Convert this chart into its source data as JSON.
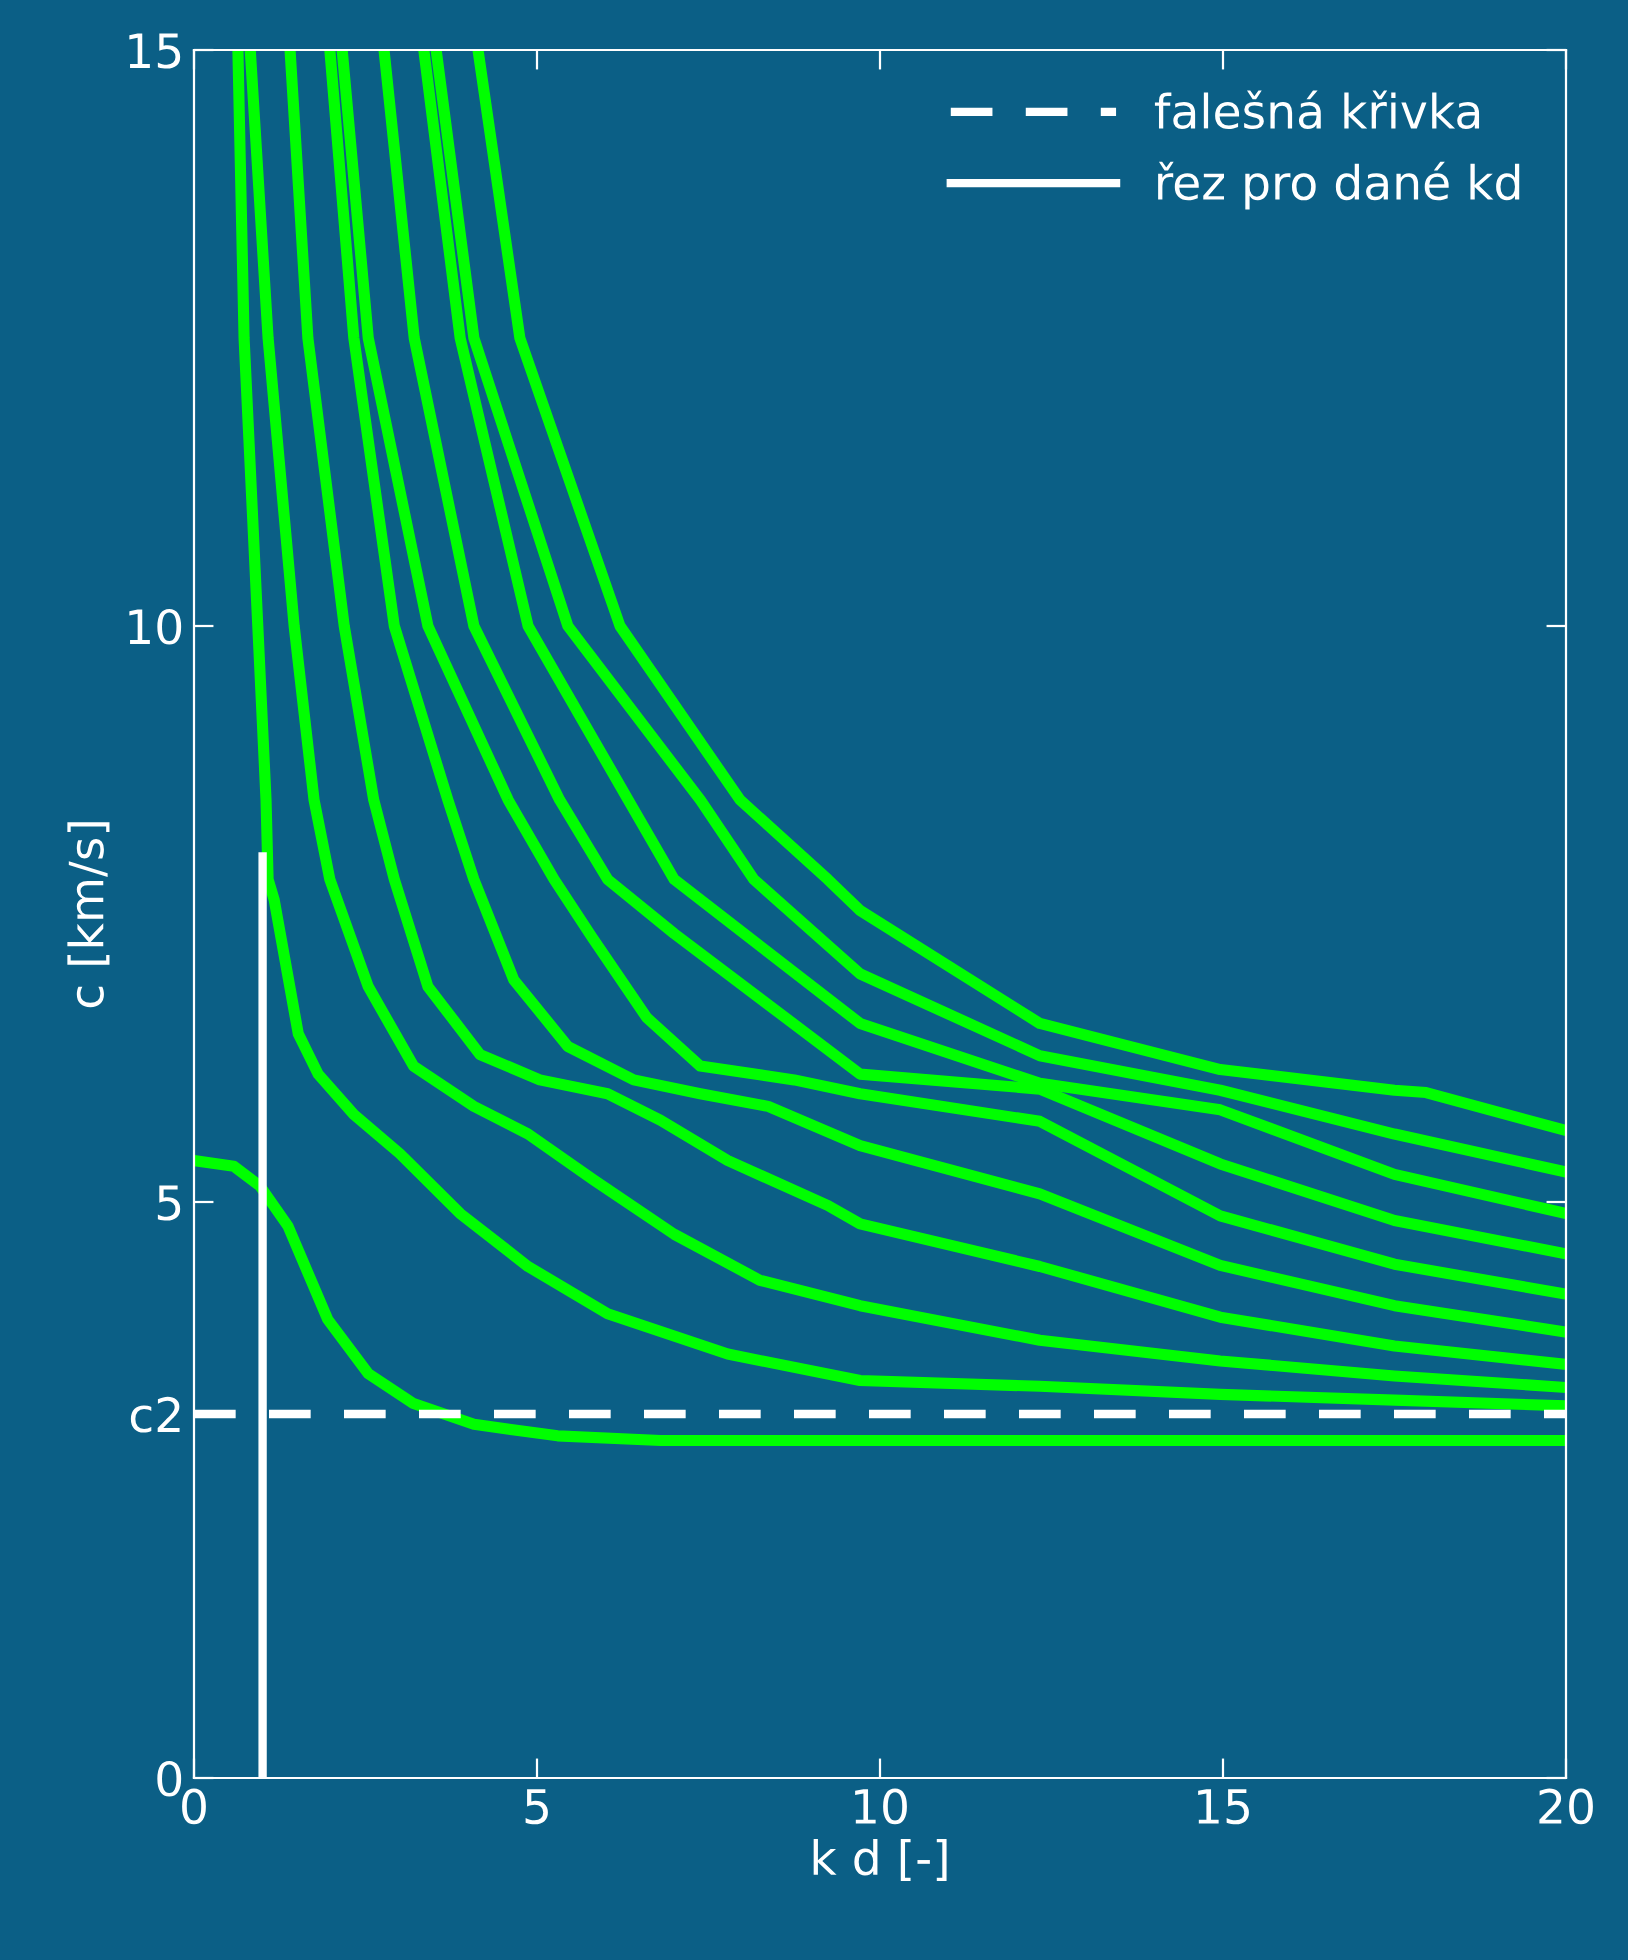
{
  "chart_data": {
    "type": "line",
    "xlabel": "k d [-]",
    "ylabel": "c [km/s]",
    "xlim": [
      0,
      20
    ],
    "ylim": [
      0,
      15
    ],
    "xticks": [
      0,
      5,
      10,
      15,
      20
    ],
    "yticks": [
      0,
      {
        "value": 3.16,
        "label": "c2"
      },
      5,
      10,
      15
    ],
    "grid": false,
    "legend": "top right",
    "marker": "none",
    "series": [
      {
        "color": "#00ff00",
        "x": [
          0,
          0.58,
          0.96,
          1.37,
          1.95,
          2.54,
          3.2,
          4.08,
          5.3,
          6.8,
          10,
          15,
          20
        ],
        "values": [
          5.36,
          5.31,
          5.14,
          4.79,
          3.98,
          3.51,
          3.25,
          3.07,
          2.97,
          2.93,
          2.93,
          2.93,
          2.93
        ]
      },
      {
        "color": "#00ff00",
        "x": [
          0.64,
          0.73,
          0.93,
          1.05,
          1.08,
          1.17,
          1.52,
          1.81,
          2.33,
          3.0,
          3.88,
          4.87,
          6.03,
          7.78,
          9.71,
          12.33,
          14.96,
          17.5,
          20
        ],
        "values": [
          15,
          12.5,
          10,
          8.49,
          7.8,
          7.62,
          6.46,
          6.11,
          5.76,
          5.42,
          4.9,
          4.44,
          4.03,
          3.68,
          3.45,
          3.4,
          3.33,
          3.28,
          3.23
        ]
      },
      {
        "color": "#00ff00",
        "x": [
          0.82,
          1.08,
          1.46,
          1.75,
          1.98,
          2.54,
          3.2,
          4.08,
          4.87,
          5.83,
          7.0,
          8.25,
          9.71,
          12.33,
          14.96,
          17.5,
          20
        ],
        "values": [
          15,
          12.5,
          10,
          8.49,
          7.8,
          6.87,
          6.18,
          5.83,
          5.59,
          5.19,
          4.72,
          4.32,
          4.1,
          3.8,
          3.62,
          3.49,
          3.39
        ]
      },
      {
        "color": "#00ff00",
        "x": [
          1.4,
          1.66,
          2.19,
          2.62,
          2.92,
          3.41,
          4.17,
          5.04,
          6.03,
          6.8,
          7.78,
          9.24,
          9.71,
          12.33,
          14.96,
          17.5,
          20
        ],
        "values": [
          15,
          12.5,
          10,
          8.49,
          7.8,
          6.87,
          6.28,
          6.06,
          5.94,
          5.71,
          5.36,
          4.97,
          4.81,
          4.44,
          4.0,
          3.75,
          3.59
        ]
      },
      {
        "color": "#00ff00",
        "x": [
          1.98,
          2.33,
          2.92,
          3.7,
          4.08,
          4.66,
          5.45,
          6.41,
          7.38,
          8.37,
          9.71,
          12.33,
          14.96,
          17.5,
          20
        ],
        "values": [
          15,
          12.5,
          10,
          8.49,
          7.8,
          6.93,
          6.35,
          6.06,
          5.94,
          5.83,
          5.49,
          5.07,
          4.45,
          4.1,
          3.87
        ]
      },
      {
        "color": "#00ff00",
        "x": [
          2.16,
          2.54,
          3.41,
          4.58,
          5.25,
          5.8,
          6.6,
          7.38,
          8.75,
          9.71,
          12.33,
          14.96,
          17.5,
          20
        ],
        "values": [
          15,
          12.5,
          10,
          8.49,
          7.8,
          7.3,
          6.6,
          6.18,
          6.06,
          5.94,
          5.7,
          4.88,
          4.46,
          4.2
        ]
      },
      {
        "color": "#00ff00",
        "x": [
          2.77,
          3.21,
          4.08,
          5.33,
          6.03,
          7.0,
          9.71,
          12.33,
          14.96,
          17.5,
          20
        ],
        "values": [
          15,
          12.5,
          10,
          8.49,
          7.8,
          7.33,
          6.11,
          5.98,
          5.33,
          4.84,
          4.55
        ]
      },
      {
        "color": "#00ff00",
        "x": [
          3.35,
          3.88,
          4.87,
          6.33,
          7.0,
          9.71,
          12.33,
          14.96,
          17.5,
          20
        ],
        "values": [
          15,
          12.5,
          10,
          8.49,
          7.8,
          6.55,
          6.03,
          5.8,
          5.24,
          4.9
        ]
      },
      {
        "color": "#00ff00",
        "x": [
          3.53,
          4.08,
          5.45,
          7.38,
          8.16,
          9.71,
          12.33,
          14.96,
          17.5,
          20
        ],
        "values": [
          15,
          12.5,
          10,
          8.49,
          7.8,
          6.98,
          6.27,
          5.97,
          5.59,
          5.26
        ]
      },
      {
        "color": "#00ff00",
        "x": [
          4.14,
          4.75,
          6.21,
          7.96,
          9.24,
          9.71,
          12.33,
          14.96,
          17.5,
          17.96,
          20
        ],
        "values": [
          15,
          12.5,
          10,
          8.49,
          7.8,
          7.53,
          6.55,
          6.15,
          5.97,
          5.95,
          5.62
        ]
      },
      {
        "name": "falešná křivka",
        "color": "#ffffff",
        "line_style": "dashed",
        "x": [
          0,
          20
        ],
        "values": [
          3.16,
          3.16
        ]
      },
      {
        "name": "řez pro dané kd",
        "color": "#ffffff",
        "line_style": "solid",
        "x": [
          1,
          1
        ],
        "values": [
          0,
          8
        ]
      }
    ]
  }
}
